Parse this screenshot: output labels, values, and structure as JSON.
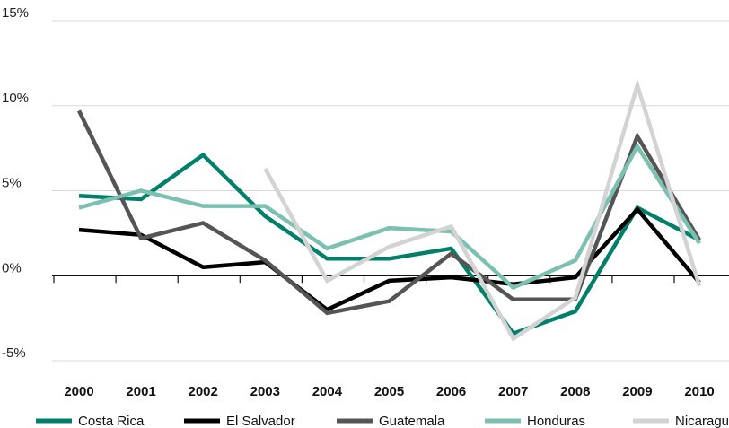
{
  "chart_data": {
    "type": "line",
    "categories": [
      "2000",
      "2001",
      "2002",
      "2003",
      "2004",
      "2005",
      "2006",
      "2007",
      "2008",
      "2009",
      "2010"
    ],
    "y_ticks": [
      {
        "value": 15,
        "label": "15%"
      },
      {
        "value": 10,
        "label": "10%"
      },
      {
        "value": 5,
        "label": "5%"
      },
      {
        "value": 0,
        "label": "0%"
      },
      {
        "value": -5,
        "label": "-5%"
      }
    ],
    "ylim": [
      -5,
      15
    ],
    "grid": true,
    "legend_position": "bottom",
    "series": [
      {
        "name": "Costa Rica",
        "color": "#00806b",
        "values": [
          4.7,
          4.5,
          7.1,
          3.5,
          1.0,
          1.0,
          1.6,
          -3.4,
          -2.1,
          4.0,
          2.1
        ]
      },
      {
        "name": "El Salvador",
        "color": "#000000",
        "values": [
          2.7,
          2.4,
          0.5,
          0.8,
          -2.0,
          -0.3,
          -0.1,
          -0.5,
          -0.1,
          3.9,
          -0.4
        ]
      },
      {
        "name": "Guatemala",
        "color": "#555555",
        "values": [
          9.7,
          2.2,
          3.1,
          0.9,
          -2.2,
          -1.5,
          1.3,
          -1.4,
          -1.4,
          8.2,
          2.1
        ]
      },
      {
        "name": "Honduras",
        "color": "#7cc0b2",
        "values": [
          4.0,
          5.0,
          4.1,
          4.1,
          1.6,
          2.8,
          2.6,
          -0.7,
          0.9,
          7.6,
          1.9
        ]
      },
      {
        "name": "Nicaragua",
        "color": "#d3d3d3",
        "values": [
          null,
          null,
          null,
          6.3,
          -0.3,
          1.7,
          2.9,
          -3.7,
          -1.3,
          11.2,
          -0.6
        ]
      }
    ]
  }
}
